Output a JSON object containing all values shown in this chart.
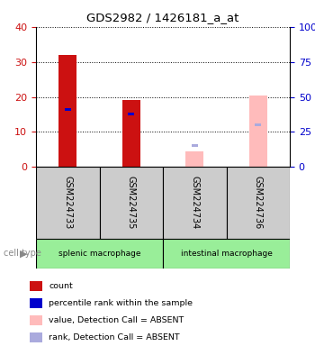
{
  "title": "GDS2982 / 1426181_a_at",
  "samples": [
    "GSM224733",
    "GSM224735",
    "GSM224734",
    "GSM224736"
  ],
  "bars": {
    "count": [
      32,
      19,
      0,
      0
    ],
    "count_color": "#cc1111",
    "percentile": [
      16.5,
      15.0,
      0,
      0
    ],
    "percentile_color": "#0000cc",
    "absent_value": [
      0,
      0,
      4.5,
      20.5
    ],
    "absent_value_color": "#ffbbbb",
    "absent_rank": [
      0,
      0,
      6.0,
      12.0
    ],
    "absent_rank_color": "#aaaadd"
  },
  "ylim": [
    0,
    40
  ],
  "yticks_left": [
    0,
    10,
    20,
    30,
    40
  ],
  "yticks_right": [
    0,
    25,
    50,
    75,
    100
  ],
  "ylabel_left_color": "#cc1111",
  "ylabel_right_color": "#0000cc",
  "bg_plot": "#ffffff",
  "bg_sample_row": "#cccccc",
  "bg_celltype_row": "#99ee99",
  "cell_type_groups": [
    {
      "label": "splenic macrophage",
      "start": 0,
      "end": 2
    },
    {
      "label": "intestinal macrophage",
      "start": 2,
      "end": 4
    }
  ],
  "legend_items": [
    {
      "color": "#cc1111",
      "label": "count"
    },
    {
      "color": "#0000cc",
      "label": "percentile rank within the sample"
    },
    {
      "color": "#ffbbbb",
      "label": "value, Detection Call = ABSENT"
    },
    {
      "color": "#aaaadd",
      "label": "rank, Detection Call = ABSENT"
    }
  ],
  "cell_type_label": "cell type"
}
